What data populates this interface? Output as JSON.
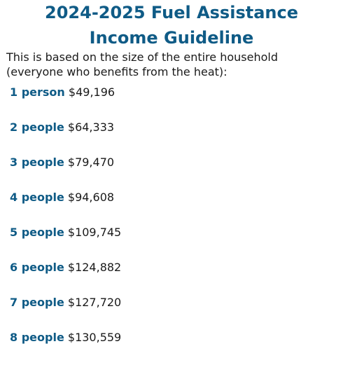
{
  "title": {
    "line1": "2024-2025 Fuel Assistance",
    "line2": "Income Guideline"
  },
  "intro": {
    "line1": "This is based on the size of the entire household",
    "line2": "(everyone who benefits from the heat):"
  },
  "guidelines": [
    {
      "household": "1 person",
      "income": "$49,196"
    },
    {
      "household": "2 people",
      "income": "$64,333"
    },
    {
      "household": "3 people",
      "income": "$79,470"
    },
    {
      "household": "4 people",
      "income": "$94,608"
    },
    {
      "household": "5 people",
      "income": "$109,745"
    },
    {
      "household": "6 people",
      "income": "$124,882"
    },
    {
      "household": "7 people",
      "income": "$127,720"
    },
    {
      "household": "8 people",
      "income": "$130,559"
    }
  ],
  "colors": {
    "accent": "#0f5b86",
    "text": "#1a1a1a",
    "background": "#ffffff"
  }
}
